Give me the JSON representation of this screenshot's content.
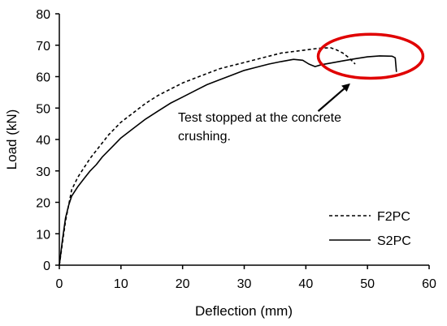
{
  "chart_data": {
    "type": "line",
    "title": "",
    "xlabel": "Deflection (mm)",
    "ylabel": "Load (kN)",
    "xlim": [
      0,
      60
    ],
    "ylim": [
      0,
      80
    ],
    "x_ticks": [
      "0",
      "10",
      "20",
      "30",
      "40",
      "50",
      "60"
    ],
    "y_ticks": [
      "0",
      "10",
      "20",
      "30",
      "40",
      "50",
      "60",
      "70",
      "80"
    ],
    "grid": false,
    "legend_position": "bottom-right",
    "series": [
      {
        "name": "F2PC",
        "style": "dashed",
        "color": "#000000",
        "x": [
          0,
          0.5,
          1,
          1.5,
          2,
          3,
          4,
          5,
          6,
          7,
          8,
          9,
          10,
          12,
          14,
          16,
          18,
          20,
          22,
          24,
          26,
          28,
          30,
          32,
          34,
          36,
          38,
          40,
          42,
          44,
          45,
          46,
          47,
          48
        ],
        "y": [
          0,
          7,
          14,
          19,
          24,
          28,
          31,
          34,
          36.5,
          39,
          41.5,
          43.5,
          45.5,
          48.5,
          51.5,
          54,
          56,
          58,
          59.5,
          61,
          62.5,
          63.5,
          64.5,
          65.5,
          66.5,
          67.5,
          68,
          68.5,
          69,
          69.2,
          68.5,
          67.5,
          66,
          64
        ]
      },
      {
        "name": "S2PC",
        "style": "solid",
        "color": "#000000",
        "x": [
          0,
          0.5,
          1,
          1.5,
          2,
          3,
          4,
          5,
          6,
          7,
          8,
          9,
          10,
          12,
          14,
          16,
          18,
          20,
          22,
          24,
          26,
          28,
          30,
          32,
          34,
          36,
          38,
          39.5,
          40.5,
          41.5,
          42.5,
          44,
          46,
          48,
          50,
          52,
          54,
          54.5,
          54.7
        ],
        "y": [
          0,
          8,
          15,
          19,
          22,
          25,
          27.5,
          30,
          32,
          34.5,
          36.5,
          38.5,
          40.5,
          43.5,
          46.5,
          49,
          51.5,
          53.5,
          55.5,
          57.5,
          59,
          60.5,
          62,
          63,
          64,
          64.8,
          65.5,
          65.2,
          64,
          63.2,
          63.8,
          64.3,
          65,
          65.7,
          66.3,
          66.6,
          66.5,
          66,
          61.5
        ]
      }
    ],
    "annotations": {
      "text_line1": "Test stopped at the concrete",
      "text_line2": "crushing.",
      "arrow_from": [
        42,
        49
      ],
      "arrow_to": [
        47,
        57.5
      ],
      "highlight_ellipse": {
        "center": [
          50.5,
          66.5
        ],
        "radius_x": 8.5,
        "radius_y": 7,
        "color": "#e00000"
      }
    }
  }
}
